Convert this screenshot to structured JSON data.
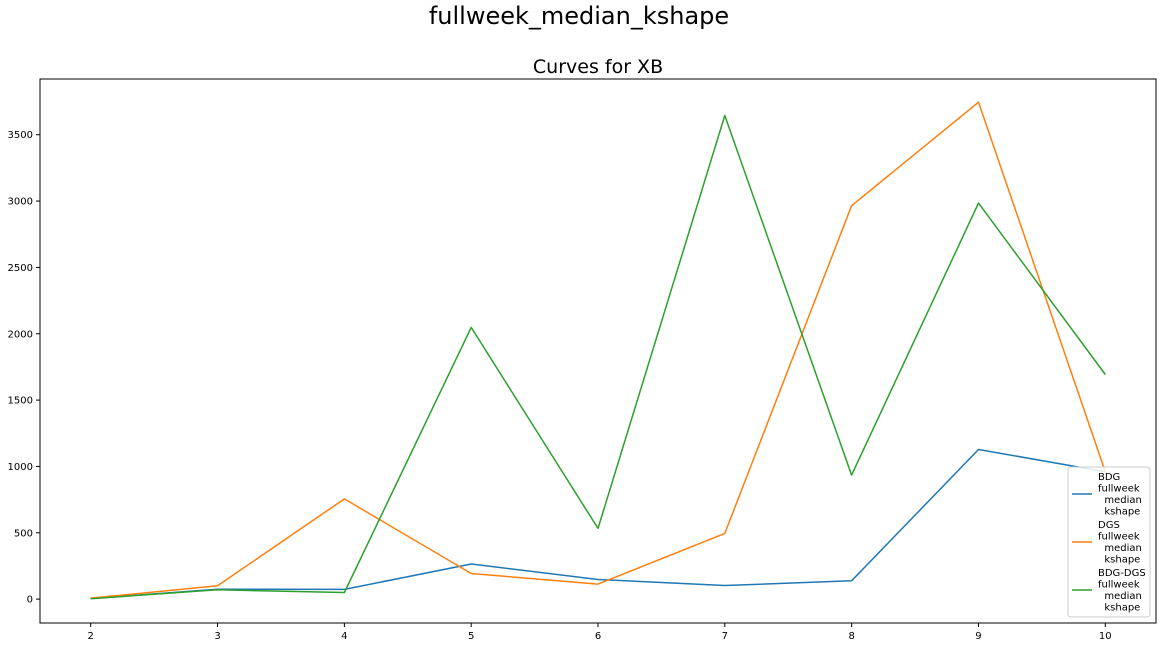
{
  "suptitle": "fullweek_median_kshape",
  "chart_data": {
    "type": "line",
    "title": "Curves for XB",
    "xlabel": "",
    "ylabel": "",
    "x": [
      2,
      3,
      4,
      5,
      6,
      7,
      8,
      9,
      10
    ],
    "xticks": [
      "2",
      "3",
      "4",
      "5",
      "6",
      "7",
      "8",
      "9",
      "10"
    ],
    "yticks": [
      "0",
      "500",
      "1000",
      "1500",
      "2000",
      "2500",
      "3000",
      "3500"
    ],
    "ylim": [
      -180,
      3920
    ],
    "xlim": [
      1.6,
      10.4
    ],
    "grid": false,
    "legend_position": "lower-right",
    "series": [
      {
        "name": "BDG\nfullweek\n  median\n  kshape",
        "color": "#1f77b4",
        "values": [
          5,
          75,
          73,
          265,
          148,
          103,
          138,
          1128,
          960
        ]
      },
      {
        "name": "DGS\nfullweek\n  median\n  kshape",
        "color": "#ff7f0e",
        "values": [
          8,
          100,
          755,
          193,
          113,
          495,
          2965,
          3745,
          960
        ]
      },
      {
        "name": "BDG-DGS\nfullweek\n  median\n  kshape",
        "color": "#2ca02c",
        "values": [
          3,
          70,
          50,
          2048,
          533,
          3645,
          935,
          2985,
          1693
        ]
      }
    ]
  }
}
